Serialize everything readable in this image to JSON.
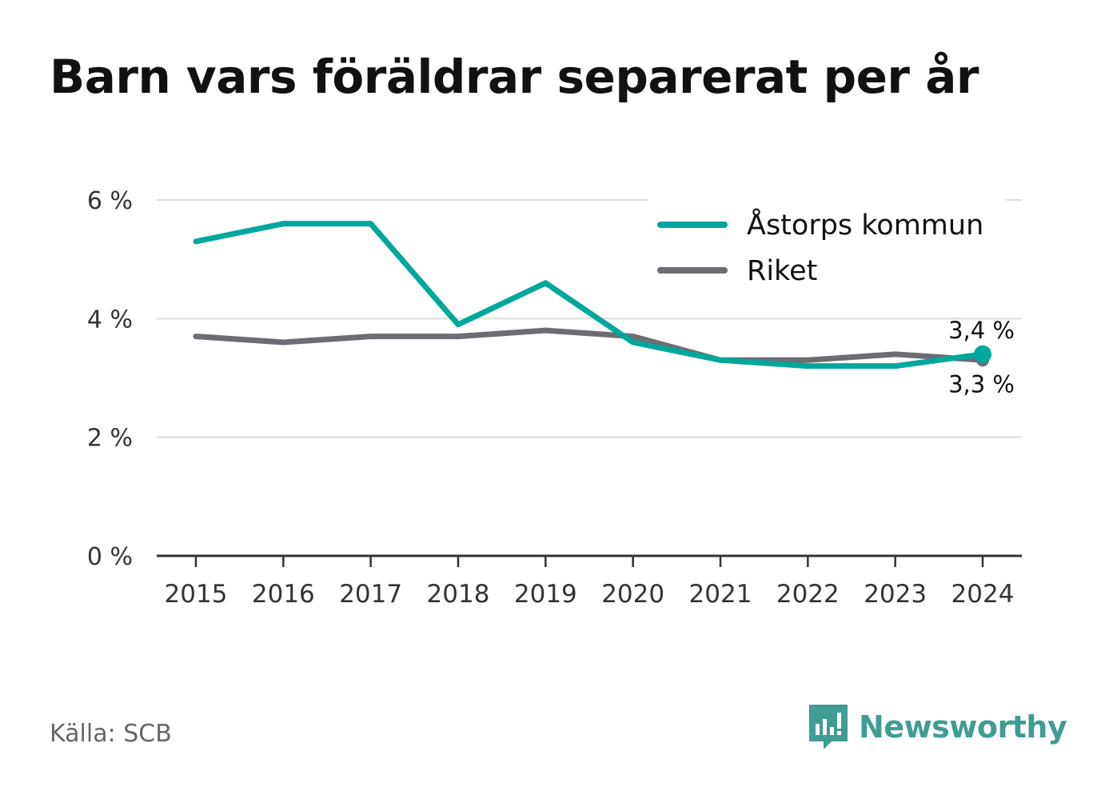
{
  "title": "Barn vars föräldrar separerat per år",
  "source": "Källa: SCB",
  "brand": "Newsworthy",
  "chart_data": {
    "type": "line",
    "x": [
      2015,
      2016,
      2017,
      2018,
      2019,
      2020,
      2021,
      2022,
      2023,
      2024
    ],
    "ylim": [
      0,
      6
    ],
    "yticks": [
      0,
      2,
      4,
      6
    ],
    "ytick_labels": [
      "0 %",
      "2 %",
      "4 %",
      "6 %"
    ],
    "xtick_labels": [
      "2015",
      "2016",
      "2017",
      "2018",
      "2019",
      "2020",
      "2021",
      "2022",
      "2023",
      "2024"
    ],
    "grid": true,
    "legend_position": "top-right",
    "series": [
      {
        "name": "Åstorps kommun",
        "color": "#00a79d",
        "values": [
          5.3,
          5.6,
          5.6,
          3.9,
          4.6,
          3.6,
          3.3,
          3.2,
          3.2,
          3.4
        ],
        "end_label": "3,4 %"
      },
      {
        "name": "Riket",
        "color": "#6d6c73",
        "values": [
          3.7,
          3.6,
          3.7,
          3.7,
          3.8,
          3.7,
          3.3,
          3.3,
          3.4,
          3.3
        ],
        "end_label": "3,3 %"
      }
    ]
  }
}
